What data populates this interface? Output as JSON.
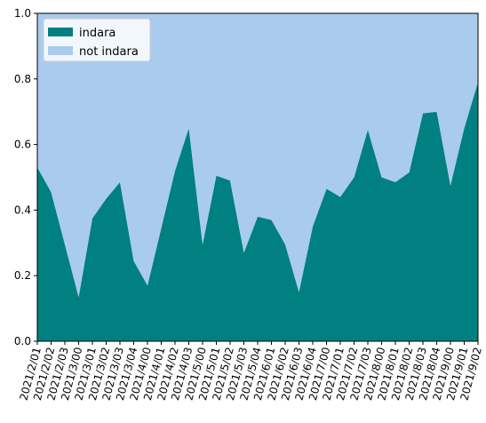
{
  "chart_data": {
    "type": "area",
    "stacked": true,
    "normalized": true,
    "x": [
      "2021/2/01",
      "2021/2/02",
      "2021/2/03",
      "2021/3/00",
      "2021/3/01",
      "2021/3/02",
      "2021/3/03",
      "2021/3/04",
      "2021/4/00",
      "2021/4/01",
      "2021/4/02",
      "2021/4/03",
      "2021/5/00",
      "2021/5/01",
      "2021/5/02",
      "2021/5/03",
      "2021/5/04",
      "2021/6/01",
      "2021/6/02",
      "2021/6/03",
      "2021/6/04",
      "2021/7/00",
      "2021/7/01",
      "2021/7/02",
      "2021/7/03",
      "2021/8/00",
      "2021/8/01",
      "2021/8/02",
      "2021/8/03",
      "2021/8/04",
      "2021/9/00",
      "2021/9/01",
      "2021/9/02"
    ],
    "series": [
      {
        "name": "indara",
        "color": "#008080",
        "values": [
          0.53,
          0.455,
          0.295,
          0.135,
          0.375,
          0.435,
          0.485,
          0.245,
          0.17,
          0.345,
          0.52,
          0.65,
          0.295,
          0.505,
          0.49,
          0.27,
          0.38,
          0.37,
          0.295,
          0.15,
          0.35,
          0.465,
          0.44,
          0.5,
          0.645,
          0.5,
          0.485,
          0.515,
          0.695,
          0.7,
          0.475,
          0.65,
          0.79
        ]
      },
      {
        "name": "not indara",
        "color": "#a9cbee",
        "values": [
          0.47,
          0.545,
          0.705,
          0.865,
          0.625,
          0.565,
          0.515,
          0.755,
          0.83,
          0.655,
          0.48,
          0.35,
          0.705,
          0.495,
          0.51,
          0.73,
          0.62,
          0.63,
          0.705,
          0.85,
          0.65,
          0.535,
          0.56,
          0.5,
          0.355,
          0.5,
          0.515,
          0.485,
          0.305,
          0.3,
          0.525,
          0.35,
          0.21
        ]
      }
    ],
    "ylim": [
      0,
      1
    ],
    "yticks": [
      "0.0",
      "0.2",
      "0.4",
      "0.6",
      "0.8",
      "1.0"
    ],
    "title": "",
    "xlabel": "",
    "ylabel": "",
    "legend": {
      "placement": "upper-left",
      "entries": [
        "indara",
        "not indara"
      ]
    },
    "grid": false
  }
}
